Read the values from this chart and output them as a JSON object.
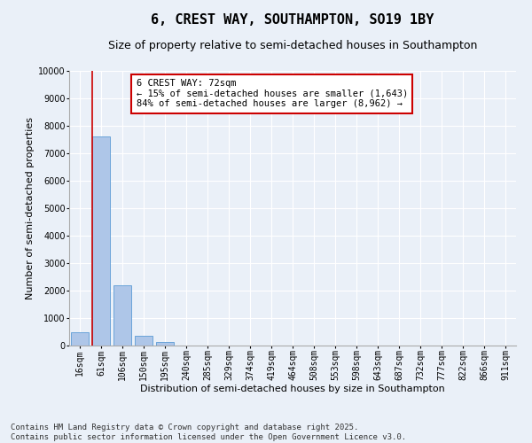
{
  "title": "6, CREST WAY, SOUTHAMPTON, SO19 1BY",
  "subtitle": "Size of property relative to semi-detached houses in Southampton",
  "xlabel": "Distribution of semi-detached houses by size in Southampton",
  "ylabel": "Number of semi-detached properties",
  "categories": [
    "16sqm",
    "61sqm",
    "106sqm",
    "150sqm",
    "195sqm",
    "240sqm",
    "285sqm",
    "329sqm",
    "374sqm",
    "419sqm",
    "464sqm",
    "508sqm",
    "553sqm",
    "598sqm",
    "643sqm",
    "687sqm",
    "732sqm",
    "777sqm",
    "822sqm",
    "866sqm",
    "911sqm"
  ],
  "values": [
    500,
    7600,
    2200,
    350,
    120,
    0,
    0,
    0,
    0,
    0,
    0,
    0,
    0,
    0,
    0,
    0,
    0,
    0,
    0,
    0,
    0
  ],
  "bar_color": "#aec6e8",
  "bar_edge_color": "#5b9bd5",
  "vline_color": "#cc0000",
  "ylim": [
    0,
    10000
  ],
  "yticks": [
    0,
    1000,
    2000,
    3000,
    4000,
    5000,
    6000,
    7000,
    8000,
    9000,
    10000
  ],
  "annotation_title": "6 CREST WAY: 72sqm",
  "annotation_line1": "← 15% of semi-detached houses are smaller (1,643)",
  "annotation_line2": "84% of semi-detached houses are larger (8,962) →",
  "annotation_box_color": "#cc0000",
  "footer_line1": "Contains HM Land Registry data © Crown copyright and database right 2025.",
  "footer_line2": "Contains public sector information licensed under the Open Government Licence v3.0.",
  "background_color": "#eaf0f8",
  "plot_bg_color": "#eaf0f8",
  "grid_color": "#ffffff",
  "title_fontsize": 11,
  "subtitle_fontsize": 9,
  "axis_label_fontsize": 8,
  "tick_fontsize": 7,
  "annotation_fontsize": 7.5,
  "footer_fontsize": 6.5
}
